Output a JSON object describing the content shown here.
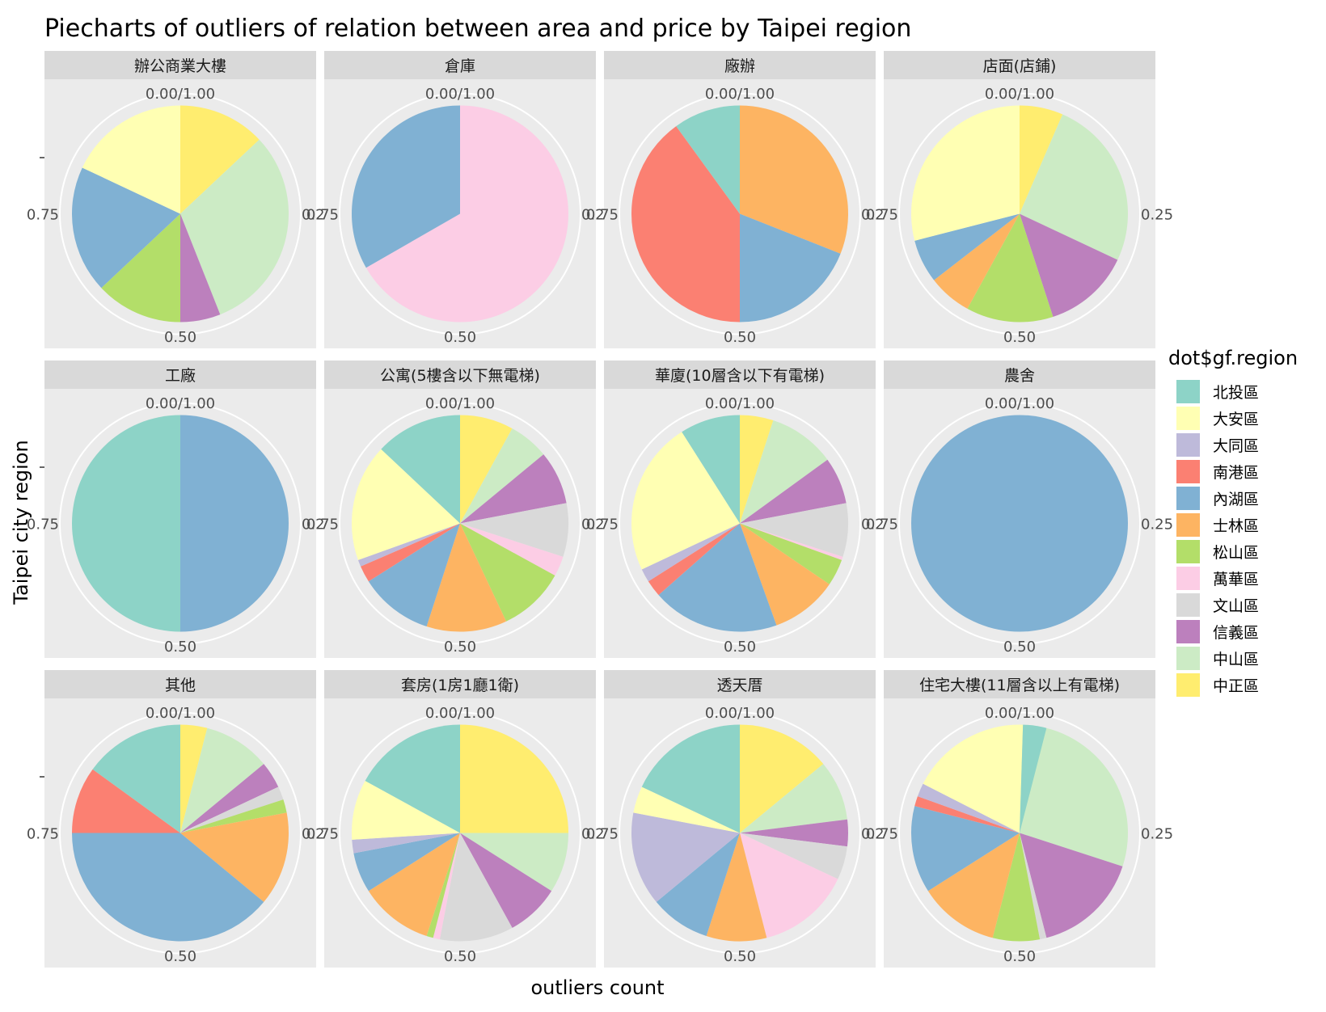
{
  "chart_data": {
    "type": "pie",
    "title": "Piecharts of outliers of relation between area and price by Taipei region",
    "xlabel": "outliers count",
    "ylabel": "Taipei city region",
    "theta_ticks": [
      "0.00/1.00",
      "0.25",
      "0.50",
      "0.75"
    ],
    "legend": {
      "title": "dot$gf.region",
      "placement": "right",
      "entries": [
        {
          "name": "北投區",
          "color": "#8DD3C7"
        },
        {
          "name": "大安區",
          "color": "#FFFFB3"
        },
        {
          "name": "大同區",
          "color": "#BEBADA"
        },
        {
          "name": "南港區",
          "color": "#FB8072"
        },
        {
          "name": "內湖區",
          "color": "#80B1D3"
        },
        {
          "name": "士林區",
          "color": "#FDB462"
        },
        {
          "name": "松山區",
          "color": "#B3DE69"
        },
        {
          "name": "萬華區",
          "color": "#FCCDE5"
        },
        {
          "name": "文山區",
          "color": "#D9D9D9"
        },
        {
          "name": "信義區",
          "color": "#BC80BD"
        },
        {
          "name": "中山區",
          "color": "#CCEBC5"
        },
        {
          "name": "中正區",
          "color": "#FFED6F"
        }
      ]
    },
    "panels": [
      {
        "label": "辦公商業大樓",
        "slices": [
          {
            "region": "中正區",
            "value": 0.13
          },
          {
            "region": "中山區",
            "value": 0.31
          },
          {
            "region": "信義區",
            "value": 0.06
          },
          {
            "region": "松山區",
            "value": 0.13
          },
          {
            "region": "內湖區",
            "value": 0.19
          },
          {
            "region": "大安區",
            "value": 0.18
          }
        ]
      },
      {
        "label": "倉庫",
        "slices": [
          {
            "region": "萬華區",
            "value": 0.667
          },
          {
            "region": "內湖區",
            "value": 0.333
          }
        ]
      },
      {
        "label": "廠辦",
        "slices": [
          {
            "region": "士林區",
            "value": 0.31
          },
          {
            "region": "內湖區",
            "value": 0.19
          },
          {
            "region": "南港區",
            "value": 0.4
          },
          {
            "region": "北投區",
            "value": 0.1
          }
        ]
      },
      {
        "label": "店面(店鋪)",
        "slices": [
          {
            "region": "中正區",
            "value": 0.065
          },
          {
            "region": "中山區",
            "value": 0.255
          },
          {
            "region": "信義區",
            "value": 0.13
          },
          {
            "region": "松山區",
            "value": 0.13
          },
          {
            "region": "士林區",
            "value": 0.065
          },
          {
            "region": "內湖區",
            "value": 0.065
          },
          {
            "region": "大安區",
            "value": 0.29
          }
        ]
      },
      {
        "label": "工廠",
        "slices": [
          {
            "region": "內湖區",
            "value": 0.5
          },
          {
            "region": "北投區",
            "value": 0.5
          }
        ]
      },
      {
        "label": "公寓(5樓含以下無電梯)",
        "slices": [
          {
            "region": "中正區",
            "value": 0.08
          },
          {
            "region": "中山區",
            "value": 0.06
          },
          {
            "region": "信義區",
            "value": 0.08
          },
          {
            "region": "文山區",
            "value": 0.08
          },
          {
            "region": "萬華區",
            "value": 0.03
          },
          {
            "region": "松山區",
            "value": 0.1
          },
          {
            "region": "士林區",
            "value": 0.12
          },
          {
            "region": "內湖區",
            "value": 0.11
          },
          {
            "region": "南港區",
            "value": 0.025
          },
          {
            "region": "大同區",
            "value": 0.01
          },
          {
            "region": "大安區",
            "value": 0.175
          },
          {
            "region": "北投區",
            "value": 0.13
          }
        ]
      },
      {
        "label": "華廈(10層含以下有電梯)",
        "slices": [
          {
            "region": "中正區",
            "value": 0.05
          },
          {
            "region": "中山區",
            "value": 0.1
          },
          {
            "region": "信義區",
            "value": 0.07
          },
          {
            "region": "文山區",
            "value": 0.08
          },
          {
            "region": "萬華區",
            "value": 0.005
          },
          {
            "region": "松山區",
            "value": 0.04
          },
          {
            "region": "士林區",
            "value": 0.1
          },
          {
            "region": "內湖區",
            "value": 0.19
          },
          {
            "region": "南港區",
            "value": 0.025
          },
          {
            "region": "大同區",
            "value": 0.02
          },
          {
            "region": "大安區",
            "value": 0.23
          },
          {
            "region": "北投區",
            "value": 0.09
          }
        ]
      },
      {
        "label": "農舍",
        "slices": [
          {
            "region": "內湖區",
            "value": 1.0
          }
        ]
      },
      {
        "label": "其他",
        "slices": [
          {
            "region": "中正區",
            "value": 0.04
          },
          {
            "region": "中山區",
            "value": 0.1
          },
          {
            "region": "信義區",
            "value": 0.04
          },
          {
            "region": "文山區",
            "value": 0.02
          },
          {
            "region": "松山區",
            "value": 0.02
          },
          {
            "region": "士林區",
            "value": 0.14
          },
          {
            "region": "內湖區",
            "value": 0.39
          },
          {
            "region": "南港區",
            "value": 0.1
          },
          {
            "region": "北投區",
            "value": 0.15
          }
        ]
      },
      {
        "label": "套房(1房1廳1衛)",
        "slices": [
          {
            "region": "中正區",
            "value": 0.25
          },
          {
            "region": "中山區",
            "value": 0.09
          },
          {
            "region": "信義區",
            "value": 0.08
          },
          {
            "region": "文山區",
            "value": 0.11
          },
          {
            "region": "萬華區",
            "value": 0.01
          },
          {
            "region": "松山區",
            "value": 0.01
          },
          {
            "region": "士林區",
            "value": 0.11
          },
          {
            "region": "內湖區",
            "value": 0.06
          },
          {
            "region": "大同區",
            "value": 0.02
          },
          {
            "region": "大安區",
            "value": 0.09
          },
          {
            "region": "北投區",
            "value": 0.17
          }
        ]
      },
      {
        "label": "透天厝",
        "slices": [
          {
            "region": "中正區",
            "value": 0.14
          },
          {
            "region": "中山區",
            "value": 0.09
          },
          {
            "region": "信義區",
            "value": 0.04
          },
          {
            "region": "文山區",
            "value": 0.05
          },
          {
            "region": "萬華區",
            "value": 0.14
          },
          {
            "region": "士林區",
            "value": 0.09
          },
          {
            "region": "內湖區",
            "value": 0.09
          },
          {
            "region": "大同區",
            "value": 0.14
          },
          {
            "region": "大安區",
            "value": 0.04
          },
          {
            "region": "北投區",
            "value": 0.18
          }
        ]
      },
      {
        "label": "住宅大樓(11層含以上有電梯)",
        "slices": [
          {
            "region": "中山區",
            "value": 0.3
          },
          {
            "region": "信義區",
            "value": 0.16
          },
          {
            "region": "文山區",
            "value": 0.01
          },
          {
            "region": "松山區",
            "value": 0.07
          },
          {
            "region": "士林區",
            "value": 0.12
          },
          {
            "region": "內湖區",
            "value": 0.13
          },
          {
            "region": "南港區",
            "value": 0.015
          },
          {
            "region": "大同區",
            "value": 0.02
          },
          {
            "region": "大安區",
            "value": 0.18
          },
          {
            "region": "北投區",
            "value": 0.035
          }
        ]
      }
    ]
  }
}
